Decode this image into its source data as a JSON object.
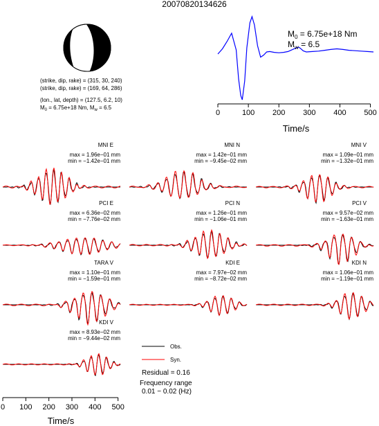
{
  "title": "20070820134626",
  "beachball": {
    "fill_color": "#000000",
    "line_color": "#000000"
  },
  "params": {
    "line1": "(strike, dip, rake) = (315, 30, 240)",
    "line2": "(strike, dip, rake) = (169, 64, 286)",
    "line3": "(lon., lat, depth) = (127.5, 6.2, 10)",
    "line4_m0": "M",
    "line4_m0_sub": "0",
    "line4_m0_val": " = 6.75e+18 Nm, M",
    "line4_mw_sub": "w",
    "line4_mw_val": " = 6.5"
  },
  "stf_annotation": {
    "m0": "M",
    "m0_sub": "0",
    "m0_val": " = 6.75e+18 Nm",
    "mw": "M",
    "mw_sub": "w",
    "mw_val": " = 6.5"
  },
  "legend": {
    "obs": "Obs.",
    "syn": "Syn.",
    "obs_color": "#000000",
    "syn_color": "#ff0000"
  },
  "residual": "Residual = 0.16",
  "frequency": {
    "line1": "Frequency range",
    "line2": "0.01 − 0.02 (Hz)"
  },
  "chart_data": [
    {
      "type": "line",
      "name": "source-time-function",
      "xlabel": "Time/s",
      "xlim": [
        0,
        510
      ],
      "xticks": [
        0,
        100,
        200,
        300,
        400,
        500
      ],
      "series_color": "#0000ff",
      "x": [
        0,
        15,
        30,
        45,
        60,
        68,
        75,
        80,
        88,
        95,
        105,
        112,
        120,
        130,
        140,
        150,
        160,
        170,
        185,
        200,
        215,
        230,
        245,
        258,
        265,
        270,
        280,
        290,
        310,
        330,
        350,
        370,
        390,
        410,
        430,
        450,
        470,
        490,
        510
      ],
      "y": [
        0.0,
        0.25,
        0.6,
        1.0,
        0.2,
        -1.2,
        -2.0,
        -2.2,
        -1.3,
        0.3,
        1.5,
        1.8,
        1.4,
        0.4,
        -0.15,
        -0.05,
        0.1,
        0.12,
        0.08,
        0.06,
        0.08,
        0.12,
        0.22,
        0.3,
        0.33,
        0.28,
        0.15,
        0.1,
        0.12,
        0.14,
        0.18,
        0.22,
        0.25,
        0.22,
        0.18,
        0.16,
        0.14,
        0.12,
        0.1
      ]
    },
    {
      "type": "line",
      "name": "waveform-fits",
      "xlabel": "Time/s",
      "xlim": [
        0,
        510
      ],
      "xticks": [
        0,
        100,
        200,
        300,
        400,
        500
      ],
      "stations": [
        {
          "label": "MNI E",
          "max": "max = 1.96e−01 mm",
          "min": "min = −1.42e−01 mm",
          "pk": 1.96,
          "tr": 1.42,
          "c": 215,
          "w": 120,
          "f": 0.03
        },
        {
          "label": "MNI N",
          "max": "max = 1.42e−01 mm",
          "min": "min = −9.45e−02 mm",
          "pk": 1.42,
          "tr": 0.945,
          "c": 230,
          "w": 140,
          "f": 0.026
        },
        {
          "label": "MNI V",
          "max": "max = 1.09e−01 mm",
          "min": "min = −1.32e−01 mm",
          "pk": 1.09,
          "tr": 1.32,
          "c": 270,
          "w": 110,
          "f": 0.028
        },
        {
          "label": "PCI E",
          "max": "max = 6.36e−02 mm",
          "min": "min = −7.76e−02 mm",
          "pk": 0.636,
          "tr": 0.776,
          "c": 350,
          "w": 190,
          "f": 0.026
        },
        {
          "label": "PCI N",
          "max": "max = 1.26e−01 mm",
          "min": "min = −1.06e−01 mm",
          "pk": 1.26,
          "tr": 1.06,
          "c": 350,
          "w": 130,
          "f": 0.028
        },
        {
          "label": "PCI V",
          "max": "max = 9.57e−02 mm",
          "min": "min = −1.63e−01 mm",
          "pk": 0.957,
          "tr": 1.63,
          "c": 370,
          "w": 110,
          "f": 0.026
        },
        {
          "label": "TARA V",
          "max": "max = 1.10e−01 mm",
          "min": "min = −1.59e−01 mm",
          "pk": 1.1,
          "tr": 1.59,
          "c": 380,
          "w": 130,
          "f": 0.026
        },
        {
          "label": "KDI E",
          "max": "max = 7.97e−02 mm",
          "min": "min = −8.72e−02 mm",
          "pk": 0.797,
          "tr": 0.872,
          "c": 400,
          "w": 100,
          "f": 0.028
        },
        {
          "label": "KDI N",
          "max": "max = 1.06e−01 mm",
          "min": "min = −1.19e−01 mm",
          "pk": 1.06,
          "tr": 1.19,
          "c": 415,
          "w": 100,
          "f": 0.027
        },
        {
          "label": "KDI V",
          "max": "max = 8.93e−02 mm",
          "min": "min = −9.44e−02 mm",
          "pk": 0.893,
          "tr": 0.944,
          "c": 410,
          "w": 90,
          "f": 0.03
        }
      ]
    }
  ]
}
